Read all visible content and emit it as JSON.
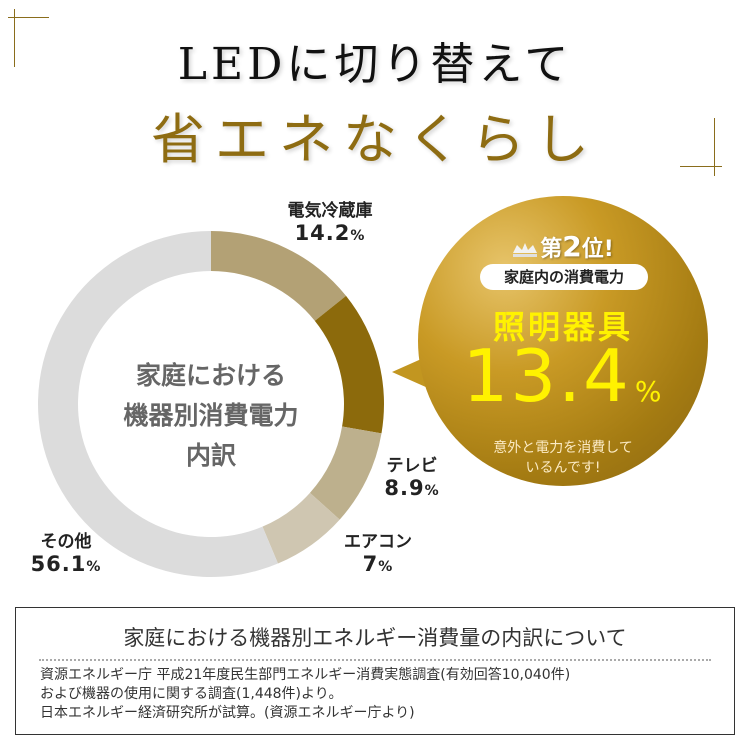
{
  "title": {
    "line1": "LEDに切り替えて",
    "line2": "省エネなくらし"
  },
  "chart_data": {
    "type": "pie",
    "variant": "donut",
    "title": "家庭における機器別消費電力内訳",
    "center_label_lines": [
      "家庭における",
      "機器別消費電力",
      "内訳"
    ],
    "start": "top",
    "direction": "clockwise",
    "slices": [
      {
        "label": "電気冷蔵庫",
        "value": 14.2,
        "display": "14.2",
        "color": "#b3a175"
      },
      {
        "label": "照明器具",
        "value": 13.4,
        "display": "13.4",
        "color": "#8c6a0c"
      },
      {
        "label": "テレビ",
        "value": 8.9,
        "display": "8.9",
        "color": "#bdb08d"
      },
      {
        "label": "エアコン",
        "value": 7,
        "display": "7",
        "color": "#cfc6b1"
      },
      {
        "label": "その他",
        "value": 56.1,
        "display": "56.1",
        "color": "#dcdcdc"
      }
    ],
    "unit": "%"
  },
  "callout": {
    "rank_prefix": "第",
    "rank_number": "2",
    "rank_suffix": "位!",
    "category": "家庭内の消費電力",
    "item": "照明器具",
    "value": "13.4",
    "unit": "%",
    "note_line1": "意外と電力を消費して",
    "note_line2": "いるんです!",
    "colors": {
      "highlight": "#fff200",
      "bubble": "#b98c1c"
    }
  },
  "note": {
    "title": "家庭における機器別エネルギー消費量の内訳について",
    "lines": [
      "資源エネルギー庁 平成21年度民生部門エネルギー消費実態調査(有効回答10,040件)",
      "および機器の使用に関する調査(1,448件)より。",
      "日本エネルギー経済研究所が試算。(資源エネルギー庁より)"
    ]
  },
  "colors": {
    "accent_gold": "#8e6c12",
    "corner_line": "#8a6d1c"
  }
}
